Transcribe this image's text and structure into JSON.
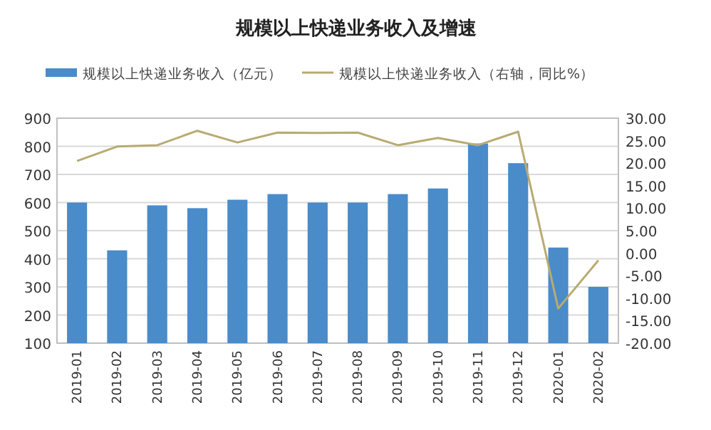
{
  "chart_data": {
    "type": "bar",
    "title": "规模以上快递业务收入及增速",
    "categories": [
      "2019-01",
      "2019-02",
      "2019-03",
      "2019-04",
      "2019-05",
      "2019-06",
      "2019-07",
      "2019-08",
      "2019-09",
      "2019-10",
      "2019-11",
      "2019-12",
      "2020-01",
      "2020-02"
    ],
    "series": [
      {
        "name": "规模以上快递业务收入（亿元）",
        "color": "#4a8bc9",
        "values": [
          600,
          430,
          590,
          580,
          610,
          630,
          600,
          600,
          630,
          650,
          810,
          740,
          440,
          300
        ]
      },
      {
        "name": "规模以上快递业务收入（右轴，同比%）",
        "type": "line",
        "axis": "y2",
        "color": "#b8ab72",
        "values": [
          20.5,
          23.7,
          24,
          27.2,
          24.6,
          26.8,
          26.7,
          26.8,
          24,
          25.6,
          24,
          27,
          -12.3,
          -1.6
        ]
      }
    ],
    "ylim": [
      100,
      900
    ],
    "yticks": [
      100,
      200,
      300,
      400,
      500,
      600,
      700,
      800,
      900
    ],
    "y2lim": [
      -20,
      30
    ],
    "y2ticks": [
      {
        "value": 30,
        "label": "30.00"
      },
      {
        "value": 25,
        "label": "25.00"
      },
      {
        "value": 20,
        "label": "20.00"
      },
      {
        "value": 15,
        "label": "15.00"
      },
      {
        "value": 10,
        "label": "10.00"
      },
      {
        "value": 5,
        "label": "5.00"
      },
      {
        "value": 0,
        "label": "0.00"
      },
      {
        "value": -5,
        "label": "-5.00"
      },
      {
        "value": -10,
        "label": "-10.00"
      },
      {
        "value": -15,
        "label": "-15.00"
      },
      {
        "value": -20,
        "label": "-20.00"
      }
    ],
    "grid": "y",
    "legend": "top",
    "marker": "none",
    "line_style": "solid"
  }
}
